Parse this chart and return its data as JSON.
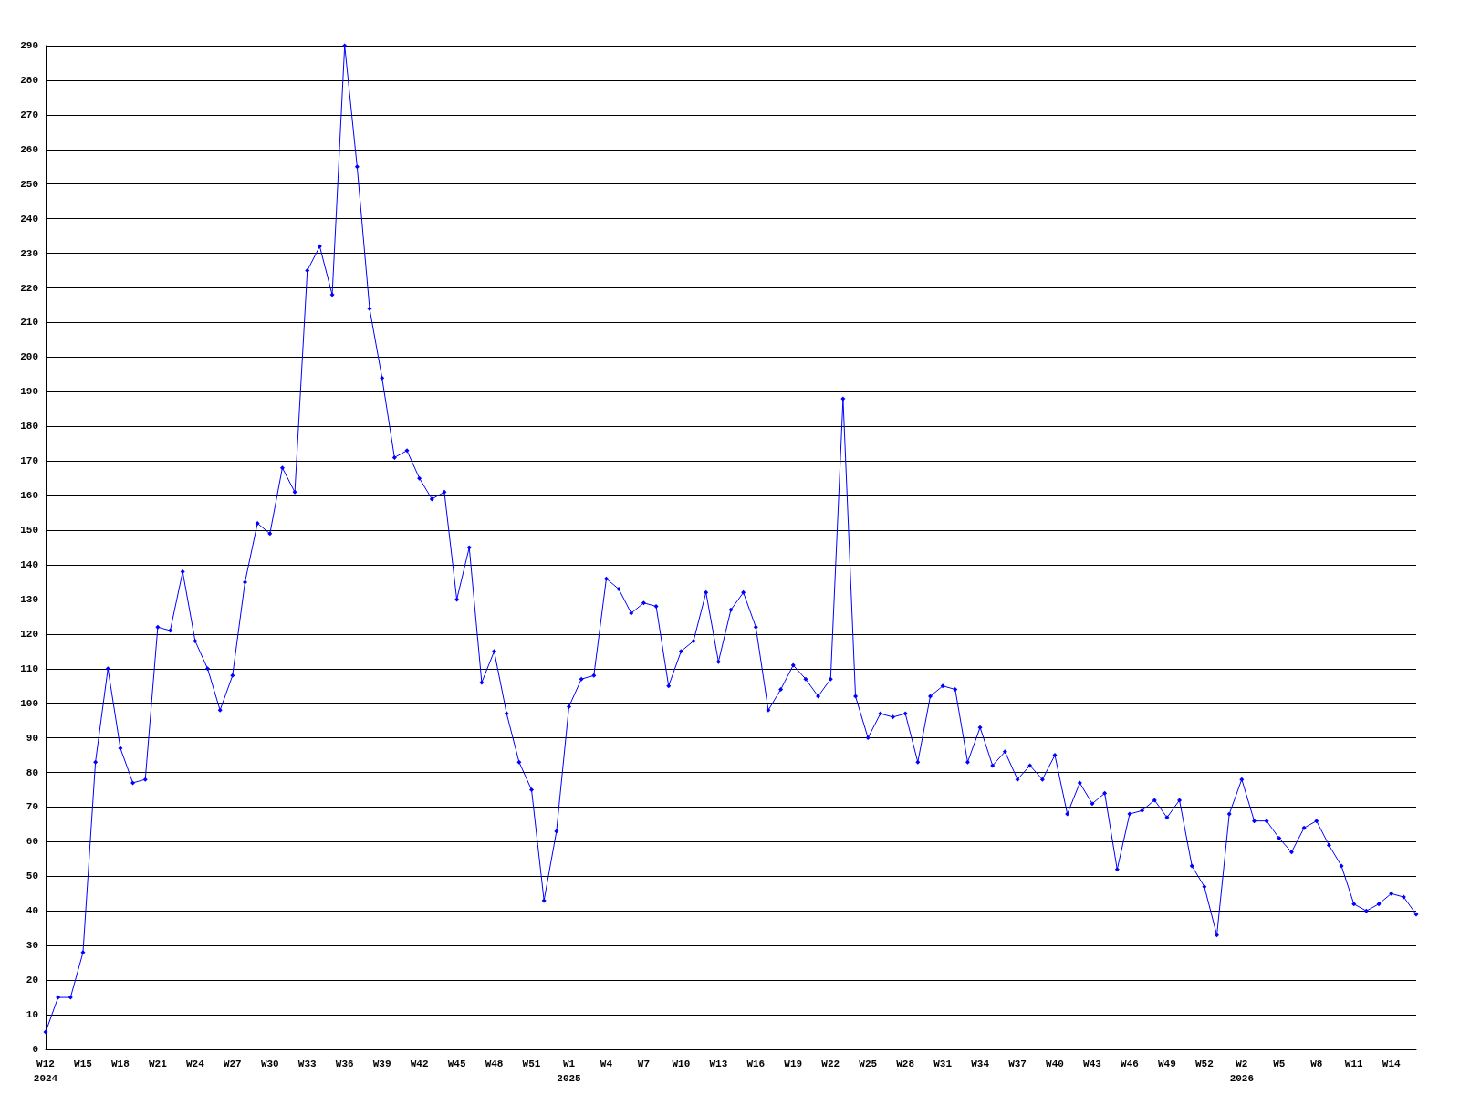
{
  "chart_data": {
    "type": "line",
    "categories": [
      "W12\n2024",
      null,
      null,
      "W15",
      null,
      null,
      "W18",
      null,
      null,
      "W21",
      null,
      null,
      "W24",
      null,
      null,
      "W27",
      null,
      null,
      "W30",
      null,
      null,
      "W33",
      null,
      null,
      "W36",
      null,
      null,
      "W39",
      null,
      null,
      "W42",
      null,
      null,
      "W45",
      null,
      null,
      "W48",
      null,
      null,
      "W51",
      null,
      null,
      "W1\n2025",
      null,
      null,
      "W4",
      null,
      null,
      "W7",
      null,
      null,
      "W10",
      null,
      null,
      "W13",
      null,
      null,
      "W16",
      null,
      null,
      "W19",
      null,
      null,
      "W22",
      null,
      null,
      "W25",
      null,
      null,
      "W28",
      null,
      null,
      "W31",
      null,
      null,
      "W34",
      null,
      null,
      "W37",
      null,
      null,
      "W40",
      null,
      null,
      "W43",
      null,
      null,
      "W46",
      null,
      null,
      "W49",
      null,
      null,
      "W52",
      null,
      null,
      "W2\n2026",
      null,
      null,
      "W5",
      null,
      null,
      "W8",
      null,
      null,
      "W11",
      null,
      null,
      "W14",
      null,
      null
    ],
    "series": [
      {
        "color": "#0000ff",
        "values": [
          5,
          15,
          15,
          28,
          83,
          110,
          87,
          77,
          78,
          122,
          121,
          138,
          118,
          110,
          98,
          108,
          135,
          152,
          149,
          168,
          161,
          225,
          232,
          218,
          290,
          255,
          214,
          194,
          171,
          173,
          165,
          159,
          161,
          130,
          145,
          106,
          115,
          97,
          83,
          75,
          43,
          63,
          99,
          107,
          108,
          136,
          133,
          126,
          129,
          128,
          105,
          115,
          118,
          132,
          112,
          127,
          132,
          122,
          98,
          104,
          111,
          107,
          102,
          107,
          188,
          102,
          90,
          97,
          96,
          97,
          83,
          102,
          105,
          104,
          83,
          93,
          82,
          86,
          78,
          82,
          78,
          85,
          68,
          77,
          71,
          74,
          52,
          68,
          69,
          72,
          67,
          72,
          53,
          47,
          33,
          68,
          78,
          66,
          66,
          61,
          57,
          64,
          66,
          59,
          53,
          42,
          40,
          42,
          45,
          44,
          39
        ]
      }
    ],
    "ylim": [
      0,
      290
    ],
    "yticks": [
      0,
      10,
      20,
      30,
      40,
      50,
      60,
      70,
      80,
      90,
      100,
      110,
      120,
      130,
      140,
      150,
      160,
      170,
      180,
      190,
      200,
      210,
      220,
      230,
      240,
      250,
      260,
      270,
      280,
      290
    ],
    "grid": "y",
    "marker": "diamond",
    "line_style": "solid"
  }
}
